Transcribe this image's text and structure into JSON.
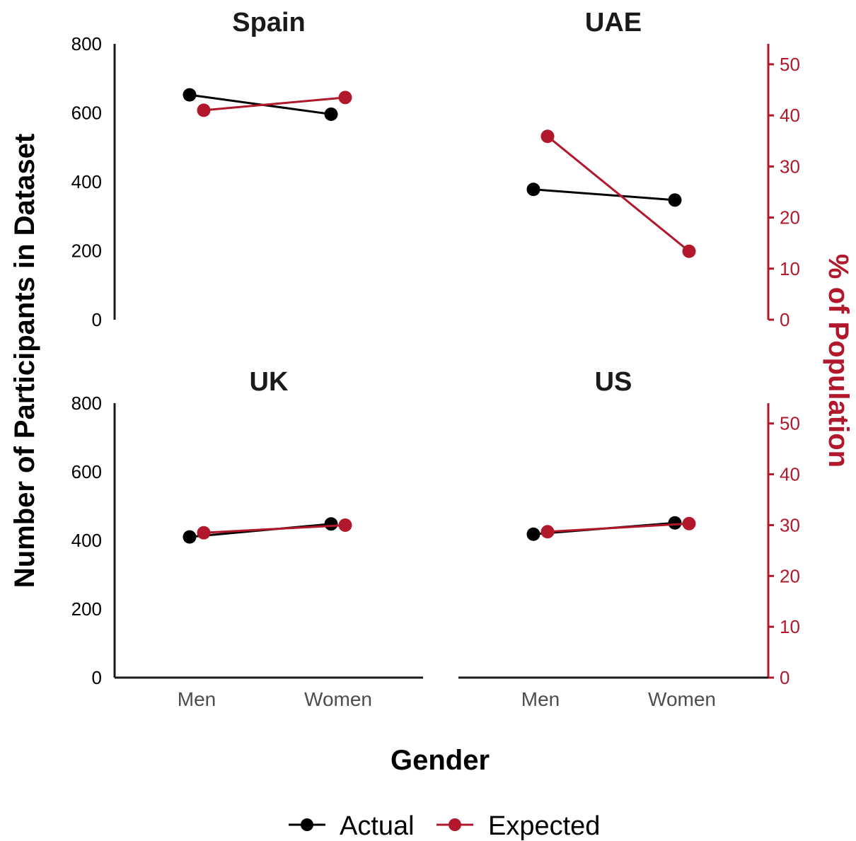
{
  "colors": {
    "actual": "#000000",
    "expected": "#b2182b",
    "axis": "#1a1a1a"
  },
  "chart_data": {
    "type": "line",
    "categories": [
      "Men",
      "Women"
    ],
    "xlabel": "Gender",
    "ylabel": "Number of Participants in Dataset",
    "y2label": "% of Population",
    "ylim": [
      0,
      800
    ],
    "y2lim": [
      0,
      54
    ],
    "yticks": [
      "0",
      "200",
      "400",
      "600",
      "800"
    ],
    "y2ticks": [
      "0",
      "10",
      "20",
      "30",
      "40",
      "50"
    ],
    "legend": [
      "Actual",
      "Expected"
    ],
    "legend_position": "bottom",
    "grid": false,
    "panels": [
      {
        "title": "Spain",
        "actual": [
          652,
          596
        ],
        "expected": [
          41.0,
          43.5
        ]
      },
      {
        "title": "UAE",
        "actual": [
          378,
          347
        ],
        "expected": [
          35.9,
          13.4
        ]
      },
      {
        "title": "UK",
        "actual": [
          410,
          448
        ],
        "expected": [
          28.5,
          30.0
        ]
      },
      {
        "title": "US",
        "actual": [
          418,
          451
        ],
        "expected": [
          28.7,
          30.3
        ]
      }
    ]
  }
}
